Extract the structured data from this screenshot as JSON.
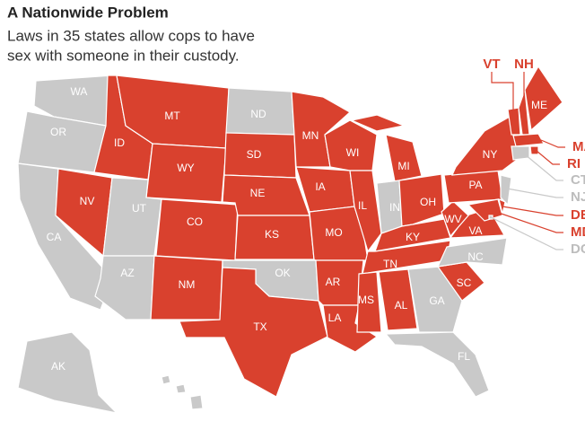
{
  "title": "A Nationwide Problem",
  "subtitle": [
    "Laws in 35 states allow cops to have",
    "sex with someone in their custody."
  ],
  "colors": {
    "allowed": "#d9412e",
    "not_allowed": "#c9c9c9"
  },
  "states": [
    {
      "label": "WA",
      "allowed": false
    },
    {
      "label": "OR",
      "allowed": false
    },
    {
      "label": "CA",
      "allowed": false
    },
    {
      "label": "NV",
      "allowed": true
    },
    {
      "label": "ID",
      "allowed": true
    },
    {
      "label": "MT",
      "allowed": true
    },
    {
      "label": "WY",
      "allowed": true
    },
    {
      "label": "UT",
      "allowed": false
    },
    {
      "label": "CO",
      "allowed": true
    },
    {
      "label": "AZ",
      "allowed": false
    },
    {
      "label": "NM",
      "allowed": true
    },
    {
      "label": "ND",
      "allowed": false
    },
    {
      "label": "SD",
      "allowed": true
    },
    {
      "label": "NE",
      "allowed": true
    },
    {
      "label": "KS",
      "allowed": true
    },
    {
      "label": "OK",
      "allowed": false
    },
    {
      "label": "TX",
      "allowed": true
    },
    {
      "label": "MN",
      "allowed": true
    },
    {
      "label": "IA",
      "allowed": true
    },
    {
      "label": "MO",
      "allowed": true
    },
    {
      "label": "AR",
      "allowed": true
    },
    {
      "label": "LA",
      "allowed": true
    },
    {
      "label": "WI",
      "allowed": true
    },
    {
      "label": "IL",
      "allowed": true
    },
    {
      "label": "MI",
      "allowed": true
    },
    {
      "label": "IN",
      "allowed": false
    },
    {
      "label": "OH",
      "allowed": true
    },
    {
      "label": "KY",
      "allowed": true
    },
    {
      "label": "TN",
      "allowed": true
    },
    {
      "label": "MS",
      "allowed": true
    },
    {
      "label": "AL",
      "allowed": true
    },
    {
      "label": "GA",
      "allowed": false
    },
    {
      "label": "FL",
      "allowed": false
    },
    {
      "label": "SC",
      "allowed": true
    },
    {
      "label": "NC",
      "allowed": false
    },
    {
      "label": "VA",
      "allowed": true
    },
    {
      "label": "WV",
      "allowed": true
    },
    {
      "label": "PA",
      "allowed": true
    },
    {
      "label": "NY",
      "allowed": true
    },
    {
      "label": "VT",
      "allowed": true
    },
    {
      "label": "NH",
      "allowed": true
    },
    {
      "label": "ME",
      "allowed": true
    },
    {
      "label": "MA",
      "allowed": true
    },
    {
      "label": "RI",
      "allowed": true
    },
    {
      "label": "CT",
      "allowed": false
    },
    {
      "label": "NJ",
      "allowed": false
    },
    {
      "label": "DE",
      "allowed": true
    },
    {
      "label": "MD",
      "allowed": true
    },
    {
      "label": "DC",
      "allowed": false
    },
    {
      "label": "AK",
      "allowed": false
    },
    {
      "label": "HI",
      "allowed": false
    }
  ]
}
